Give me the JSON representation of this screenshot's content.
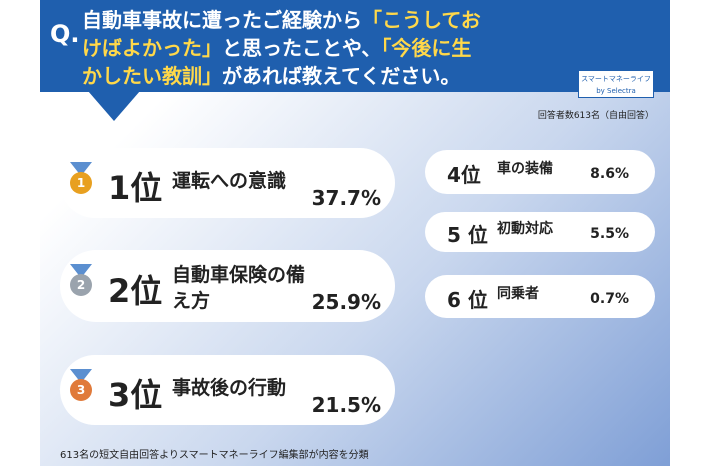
{
  "header": {
    "mark": "Q.",
    "question": [
      {
        "text": "自動車事故に遭ったご経験から",
        "highlight": false
      },
      {
        "text": "「こうしておけばよかった」",
        "highlight": true
      },
      {
        "text": "と思ったことや、",
        "highlight": false
      },
      {
        "text": "「今後に生かしたい教訓」",
        "highlight": true
      },
      {
        "text": "があれば教えてください。",
        "highlight": false
      }
    ]
  },
  "logo": {
    "name": "スマートマネーライフ",
    "by": "by Selectra"
  },
  "respondents": "回答者数613名（自由回答）",
  "rankings": [
    {
      "rank": "1位",
      "label": "運転への意識",
      "percent": "37.7%"
    },
    {
      "rank": "2位",
      "label": "自動車保険の備え方",
      "percent": "25.9%"
    },
    {
      "rank": "3位",
      "label": "事故後の行動",
      "percent": "21.5%"
    },
    {
      "rank": "4位",
      "label": "車の装備",
      "percent": "8.6%"
    },
    {
      "rank": "5 位",
      "label": "初動対応",
      "percent": "5.5%"
    },
    {
      "rank": "6 位",
      "label": "同乗者",
      "percent": "0.7%"
    }
  ],
  "medals": [
    "1",
    "2",
    "3"
  ],
  "footer": "613名の短文自由回答よりスマートマネーライフ編集部が内容を分類"
}
